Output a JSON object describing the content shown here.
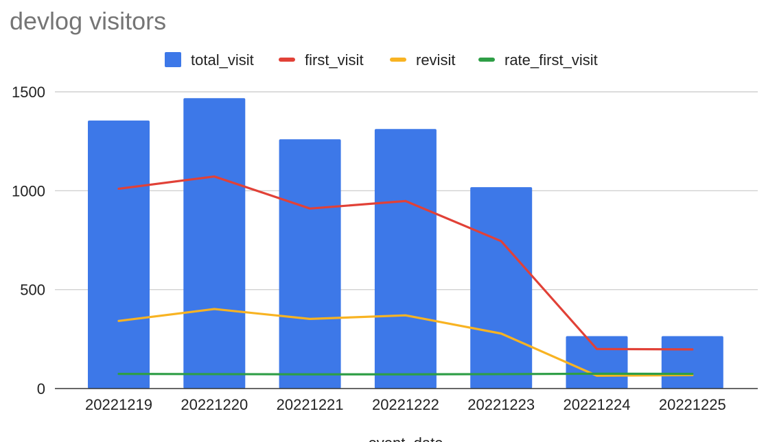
{
  "chart_data": {
    "type": "bar",
    "title": "devlog visitors",
    "xlabel": "event_date",
    "ylabel": "",
    "categories": [
      "20221219",
      "20221220",
      "20221221",
      "20221222",
      "20221223",
      "20221224",
      "20221225"
    ],
    "ylim": [
      0,
      1500
    ],
    "yticks": [
      "0",
      "500",
      "1000",
      "1500"
    ],
    "grid": true,
    "legend_position": "top",
    "series": [
      {
        "name": "total_visit",
        "type": "bar",
        "color": "#3d78e8",
        "values": [
          1355,
          1468,
          1260,
          1312,
          1018,
          265,
          265
        ]
      },
      {
        "name": "first_visit",
        "type": "line",
        "color": "#e14137",
        "values": [
          1010,
          1072,
          910,
          948,
          745,
          200,
          198
        ]
      },
      {
        "name": "revisit",
        "type": "line",
        "color": "#f8b322",
        "values": [
          342,
          402,
          352,
          370,
          278,
          65,
          68
        ]
      },
      {
        "name": "rate_first_visit",
        "type": "line",
        "color": "#2e9e46",
        "values": [
          74,
          73,
          72,
          72,
          73,
          75,
          74
        ]
      }
    ]
  }
}
